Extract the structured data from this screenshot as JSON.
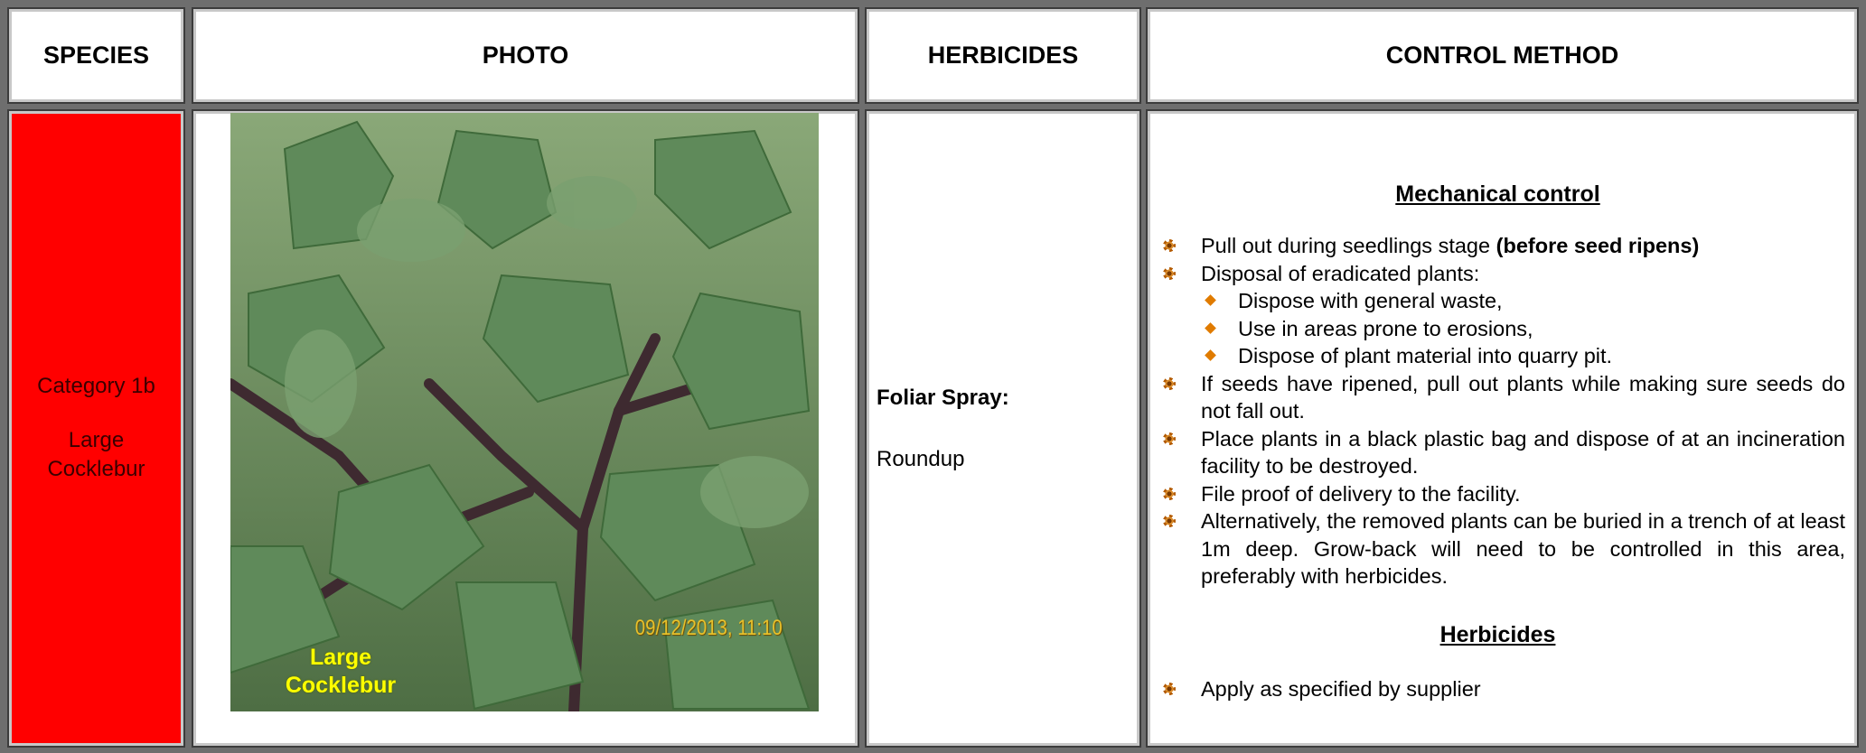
{
  "headers": [
    "SPECIES",
    "PHOTO",
    "HERBICIDES",
    "CONTROL METHOD"
  ],
  "species": {
    "category": "Category 1b",
    "name": "Large Cocklebur"
  },
  "photo": {
    "label": "Large Cocklebur",
    "timestamp": "09/12/2013, 11:10"
  },
  "herbicides": {
    "method": "Foliar Spray:",
    "product": "Roundup"
  },
  "control": {
    "mechanical": {
      "heading": "Mechanical control",
      "items": [
        {
          "text": "Pull out during seedlings stage",
          "bold": "(before seed ripens)"
        },
        {
          "text": "Disposal of eradicated plants:",
          "subitems": [
            "Dispose with general waste,",
            "Use in areas prone to erosions,",
            "Dispose of plant material into quarry pit."
          ]
        },
        {
          "text": "If seeds have ripened, pull out plants while making sure seeds do not fall out."
        },
        {
          "text": "Place plants in a black plastic bag and dispose of at an incineration facility to be destroyed."
        },
        {
          "text": "File proof of delivery to the facility."
        },
        {
          "text": "Alternatively, the removed plants can be buried in a trench of at least 1m deep.  Grow-back will need to be controlled in this area, preferably with herbicides."
        }
      ]
    },
    "herbicides": {
      "heading": "Herbicides",
      "items": [
        {
          "text": "Apply as specified by supplier"
        }
      ]
    }
  }
}
